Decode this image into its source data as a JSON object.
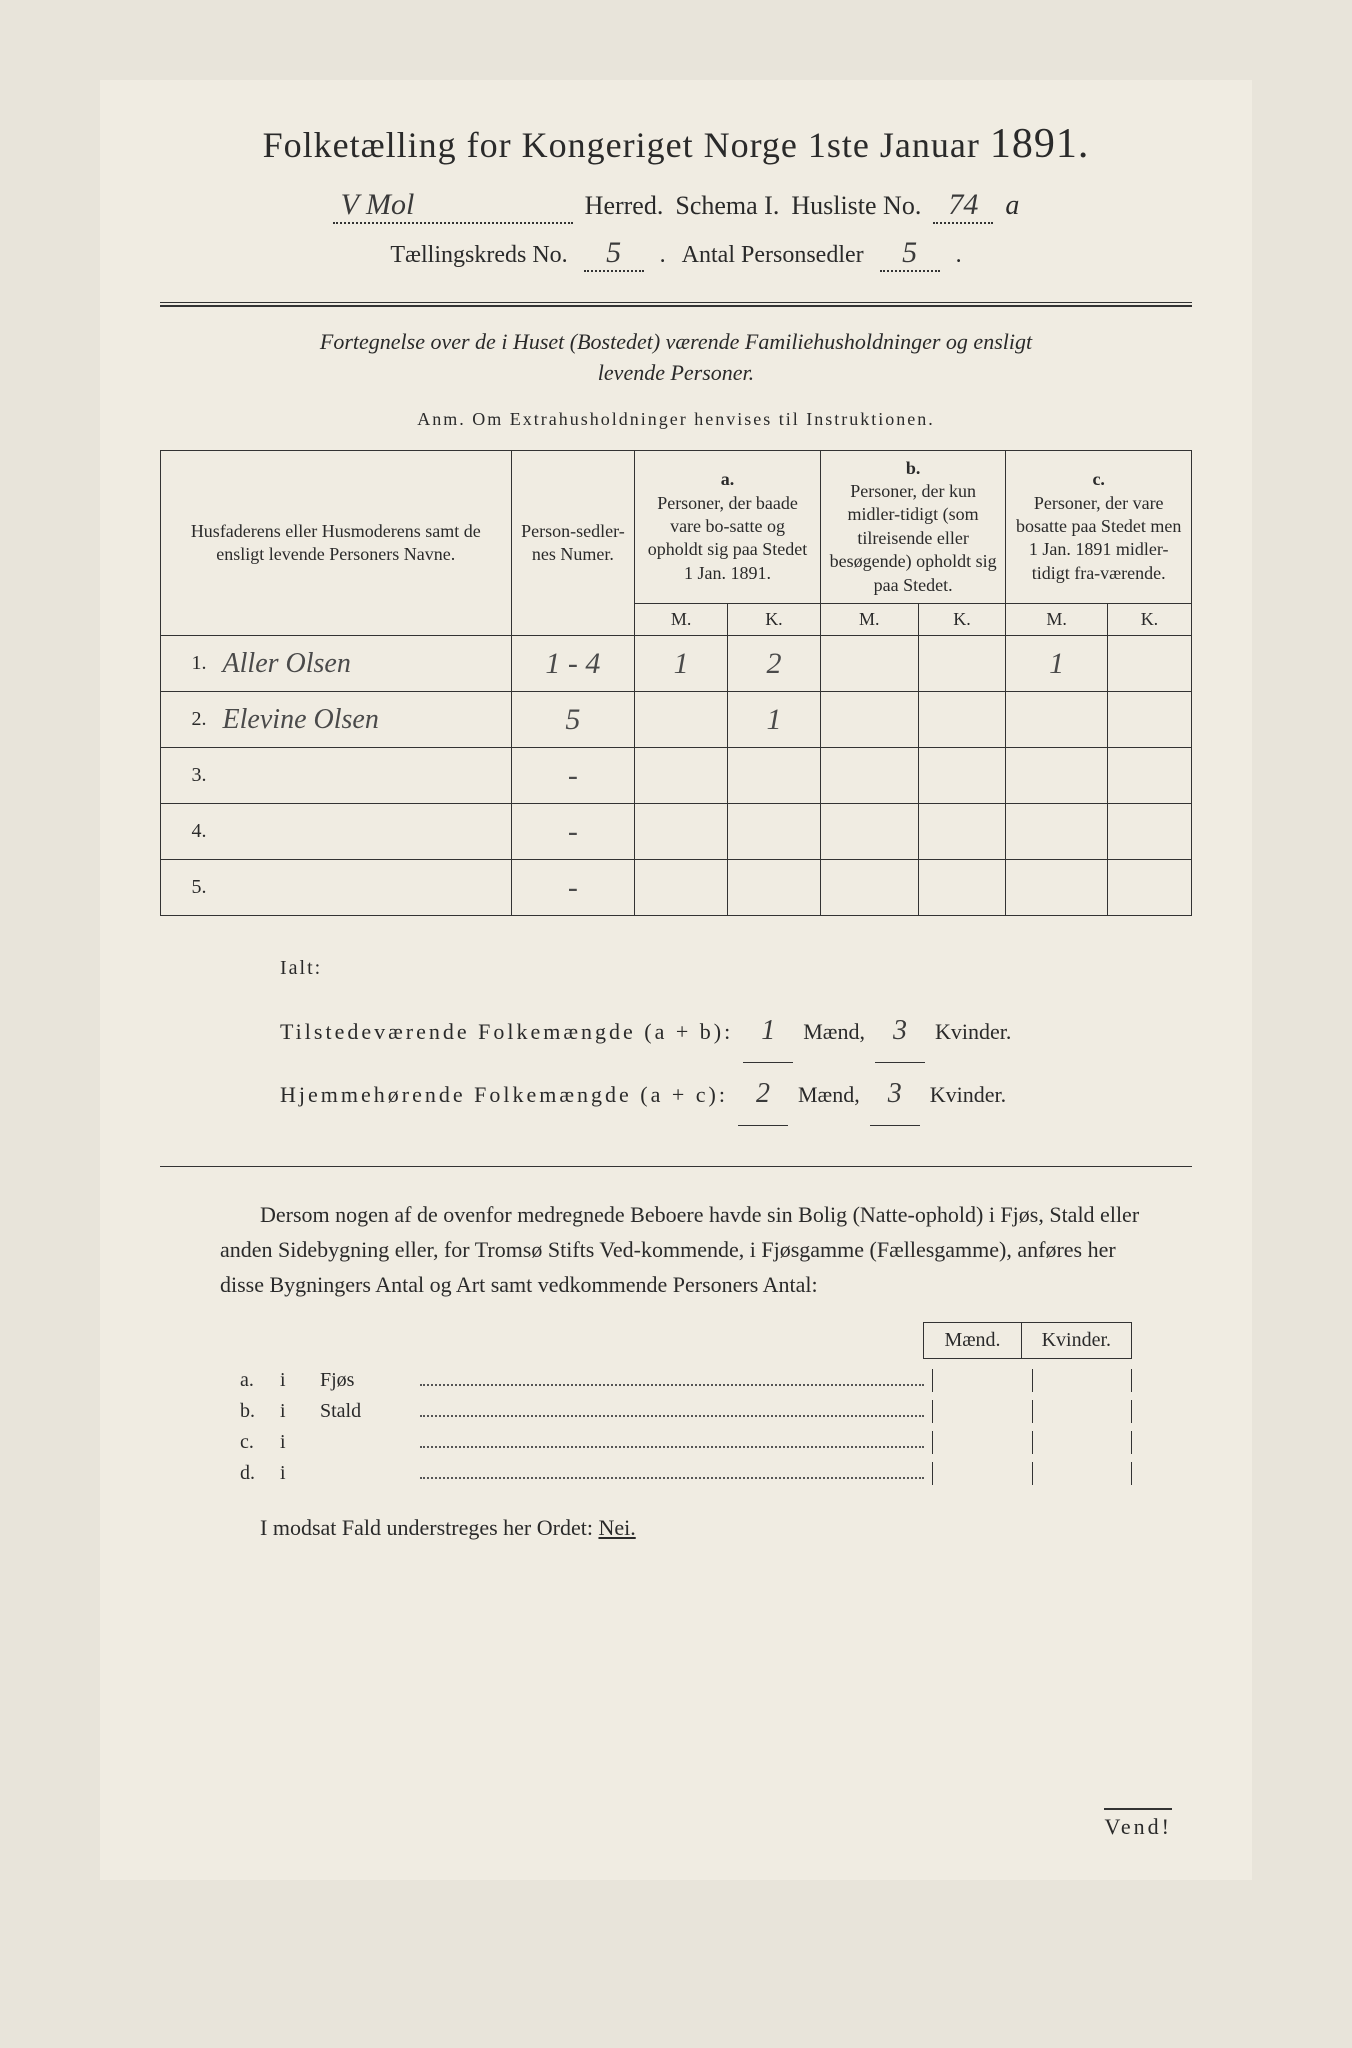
{
  "header": {
    "title_prefix": "Folketælling for Kongeriget Norge 1ste Januar",
    "year": "1891.",
    "herred_value": "V Mol",
    "herred_label": "Herred.",
    "schema_label": "Schema I.",
    "husliste_label": "Husliste No.",
    "husliste_value": "74",
    "husliste_suffix": "a",
    "tkreeds_label": "Tællingskreds No.",
    "tkreeds_value": "5",
    "antal_label": "Antal Personsedler",
    "antal_value": "5"
  },
  "intro": {
    "line1_prefix": "Fortegnelse over de i Huset (Bostedet) værende Familiehusholdninger og ensligt",
    "line2": "levende Personer.",
    "anm": "Anm. Om Extrahusholdninger henvises til Instruktionen."
  },
  "table": {
    "col_names": "Husfaderens eller Husmoderens samt de ensligt levende Personers Navne.",
    "col_numer": "Person-sedler-nes Numer.",
    "col_a_letter": "a.",
    "col_a": "Personer, der baade vare bo-satte og opholdt sig paa Stedet 1 Jan. 1891.",
    "col_b_letter": "b.",
    "col_b": "Personer, der kun midler-tidigt (som tilreisende eller besøgende) opholdt sig paa Stedet.",
    "col_c_letter": "c.",
    "col_c": "Personer, der vare bosatte paa Stedet men 1 Jan. 1891 midler-tidigt fra-værende.",
    "mk_m": "M.",
    "mk_k": "K.",
    "rows": [
      {
        "num": "1.",
        "name": "Aller Olsen",
        "numer": "1 - 4",
        "a_m": "1",
        "a_k": "2",
        "b_m": "",
        "b_k": "",
        "c_m": "1",
        "c_k": ""
      },
      {
        "num": "2.",
        "name": "Elevine Olsen",
        "numer": "5",
        "a_m": "",
        "a_k": "1",
        "b_m": "",
        "b_k": "",
        "c_m": "",
        "c_k": ""
      },
      {
        "num": "3.",
        "name": "",
        "numer": "-",
        "a_m": "",
        "a_k": "",
        "b_m": "",
        "b_k": "",
        "c_m": "",
        "c_k": ""
      },
      {
        "num": "4.",
        "name": "",
        "numer": "-",
        "a_m": "",
        "a_k": "",
        "b_m": "",
        "b_k": "",
        "c_m": "",
        "c_k": ""
      },
      {
        "num": "5.",
        "name": "",
        "numer": "-",
        "a_m": "",
        "a_k": "",
        "b_m": "",
        "b_k": "",
        "c_m": "",
        "c_k": ""
      }
    ]
  },
  "ialt": {
    "label": "Ialt:",
    "row1_label": "Tilstedeværende Folkemængde (a + b):",
    "row1_m": "1",
    "row1_k": "3",
    "row2_label": "Hjemmehørende Folkemængde (a + c):",
    "row2_m": "2",
    "row2_k": "3",
    "maend": "Mænd,",
    "kvinder": "Kvinder."
  },
  "body": {
    "text": "Dersom nogen af de ovenfor medregnede Beboere havde sin Bolig (Natte-ophold) i Fjøs, Stald eller anden Sidebygning eller, for Tromsø Stifts Ved-kommende, i Fjøsgamme (Fællesgamme), anføres her disse Bygningers Antal og Art samt vedkommende Personers Antal:"
  },
  "subtable": {
    "maend": "Mænd.",
    "kvinder": "Kvinder.",
    "rows": [
      {
        "letter": "a.",
        "i": "i",
        "type": "Fjøs"
      },
      {
        "letter": "b.",
        "i": "i",
        "type": "Stald"
      },
      {
        "letter": "c.",
        "i": "i",
        "type": ""
      },
      {
        "letter": "d.",
        "i": "i",
        "type": ""
      }
    ]
  },
  "modsat": {
    "text": "I modsat Fald understreges her Ordet:",
    "nei": "Nei."
  },
  "footer": {
    "vend": "Vend!"
  }
}
